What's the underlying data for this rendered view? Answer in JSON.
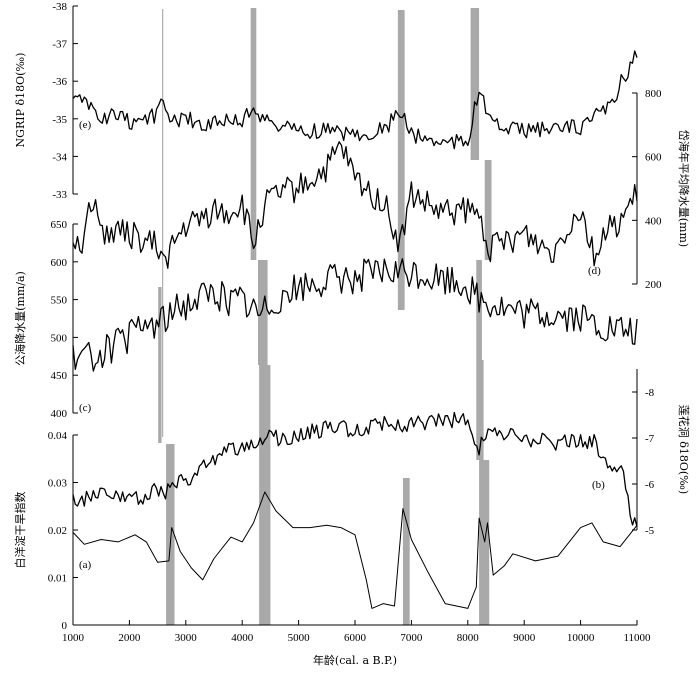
{
  "chart_data": {
    "type": "line",
    "x_axis": {
      "label": "年龄(cal. a B.P.)",
      "range": [
        1000,
        11000
      ],
      "ticks": [
        1000,
        2000,
        3000,
        4000,
        5000,
        6000,
        7000,
        8000,
        9000,
        10000,
        11000
      ],
      "tick_labels": [
        "1000",
        "2000",
        "3000",
        "4000",
        "5000",
        "6000",
        "7000",
        "8000",
        "9000",
        "10000",
        "11000"
      ]
    },
    "panels": [
      {
        "id": "e",
        "tag": "(e)",
        "side": "left",
        "label": "NGRIP δ18O(‰)",
        "range": [
          -38,
          -33
        ],
        "ticks": [
          -38,
          -37,
          -36,
          -35,
          -34,
          -33
        ],
        "tick_labels": [
          "-38",
          "-37",
          "-36",
          "-35",
          "-34",
          "-33"
        ],
        "values": [
          [
            1000,
            -35.5
          ],
          [
            1250,
            -35.4
          ],
          [
            1500,
            -35.0
          ],
          [
            1750,
            -35.1
          ],
          [
            2000,
            -34.9
          ],
          [
            2250,
            -35.0
          ],
          [
            2500,
            -35.1
          ],
          [
            2600,
            -35.5
          ],
          [
            2750,
            -35.0
          ],
          [
            3000,
            -35.0
          ],
          [
            3250,
            -34.9
          ],
          [
            3500,
            -34.9
          ],
          [
            3750,
            -35.0
          ],
          [
            4000,
            -34.9
          ],
          [
            4200,
            -35.4
          ],
          [
            4400,
            -34.9
          ],
          [
            4750,
            -34.8
          ],
          [
            5000,
            -34.7
          ],
          [
            5500,
            -34.7
          ],
          [
            6000,
            -34.6
          ],
          [
            6500,
            -34.7
          ],
          [
            6800,
            -35.2
          ],
          [
            7000,
            -34.6
          ],
          [
            7500,
            -34.4
          ],
          [
            8000,
            -34.4
          ],
          [
            8200,
            -35.8
          ],
          [
            8400,
            -34.9
          ],
          [
            8750,
            -34.7
          ],
          [
            9000,
            -34.7
          ],
          [
            9500,
            -34.7
          ],
          [
            10000,
            -34.8
          ],
          [
            10500,
            -35.3
          ],
          [
            11000,
            -36.8
          ]
        ],
        "noise": 0.22
      },
      {
        "id": "d",
        "tag": "(d)",
        "side": "right",
        "label": "岱海年平均降水量(mm)",
        "range": [
          200,
          800
        ],
        "ticks": [
          200,
          400,
          600,
          800
        ],
        "tick_labels": [
          "200",
          "400",
          "600",
          "800"
        ],
        "values": [
          [
            1000,
            350
          ],
          [
            1200,
            330
          ],
          [
            1300,
            480
          ],
          [
            1500,
            370
          ],
          [
            1750,
            360
          ],
          [
            2000,
            360
          ],
          [
            2300,
            330
          ],
          [
            2500,
            320
          ],
          [
            2600,
            270
          ],
          [
            2800,
            330
          ],
          [
            3000,
            380
          ],
          [
            3250,
            400
          ],
          [
            3500,
            430
          ],
          [
            3750,
            420
          ],
          [
            4000,
            450
          ],
          [
            4200,
            320
          ],
          [
            4400,
            450
          ],
          [
            4750,
            490
          ],
          [
            5000,
            500
          ],
          [
            5500,
            560
          ],
          [
            5750,
            630
          ],
          [
            6000,
            530
          ],
          [
            6300,
            480
          ],
          [
            6500,
            460
          ],
          [
            6800,
            320
          ],
          [
            7000,
            480
          ],
          [
            7500,
            420
          ],
          [
            8000,
            430
          ],
          [
            8200,
            410
          ],
          [
            8400,
            310
          ],
          [
            8750,
            340
          ],
          [
            9000,
            360
          ],
          [
            9500,
            300
          ],
          [
            9750,
            380
          ],
          [
            10000,
            440
          ],
          [
            10250,
            290
          ],
          [
            10500,
            370
          ],
          [
            10750,
            410
          ],
          [
            11000,
            480
          ]
        ],
        "noise": 45
      },
      {
        "id": "c",
        "tag": "(c)",
        "side": "left",
        "label": "公海降水量(mm/a)",
        "range": [
          400,
          650
        ],
        "ticks": [
          400,
          450,
          500,
          550,
          600,
          650
        ],
        "tick_labels": [
          "400",
          "450",
          "500",
          "550",
          "600",
          "650"
        ],
        "values": [
          [
            1000,
            470
          ],
          [
            1250,
            475
          ],
          [
            1500,
            480
          ],
          [
            1750,
            490
          ],
          [
            2000,
            500
          ],
          [
            2250,
            515
          ],
          [
            2500,
            520
          ],
          [
            2750,
            530
          ],
          [
            3000,
            545
          ],
          [
            3250,
            555
          ],
          [
            3500,
            560
          ],
          [
            3750,
            550
          ],
          [
            4000,
            550
          ],
          [
            4300,
            530
          ],
          [
            4500,
            545
          ],
          [
            4750,
            560
          ],
          [
            5000,
            565
          ],
          [
            5500,
            575
          ],
          [
            6000,
            580
          ],
          [
            6500,
            585
          ],
          [
            7000,
            585
          ],
          [
            7500,
            578
          ],
          [
            8000,
            570
          ],
          [
            8200,
            550
          ],
          [
            8400,
            545
          ],
          [
            8750,
            535
          ],
          [
            9000,
            530
          ],
          [
            9500,
            530
          ],
          [
            10000,
            525
          ],
          [
            10500,
            510
          ],
          [
            11000,
            505
          ]
        ],
        "noise": 22
      },
      {
        "id": "b",
        "tag": "(b)",
        "side": "right",
        "label": "莲花洞 δ18O(‰)",
        "range": [
          -5,
          -8.5
        ],
        "ticks": [
          -5,
          -6,
          -7,
          -8
        ],
        "tick_labels": [
          "-5",
          "-6",
          "-7",
          "-8"
        ],
        "values": [
          [
            1000,
            -5.6
          ],
          [
            1250,
            -5.7
          ],
          [
            1500,
            -5.8
          ],
          [
            1750,
            -5.7
          ],
          [
            2000,
            -5.8
          ],
          [
            2250,
            -5.7
          ],
          [
            2500,
            -5.9
          ],
          [
            2600,
            -5.7
          ],
          [
            2750,
            -6.0
          ],
          [
            3000,
            -6.1
          ],
          [
            3250,
            -6.3
          ],
          [
            3500,
            -6.5
          ],
          [
            3750,
            -6.7
          ],
          [
            4000,
            -6.8
          ],
          [
            4250,
            -6.9
          ],
          [
            4500,
            -7.0
          ],
          [
            4750,
            -7.0
          ],
          [
            5000,
            -7.1
          ],
          [
            5500,
            -7.2
          ],
          [
            6000,
            -7.2
          ],
          [
            6500,
            -7.3
          ],
          [
            7000,
            -7.3
          ],
          [
            7500,
            -7.4
          ],
          [
            8000,
            -7.4
          ],
          [
            8200,
            -6.8
          ],
          [
            8400,
            -7.3
          ],
          [
            8600,
            -7.0
          ],
          [
            8800,
            -7.1
          ],
          [
            9000,
            -7.0
          ],
          [
            9500,
            -6.9
          ],
          [
            10000,
            -6.9
          ],
          [
            10250,
            -6.9
          ],
          [
            10500,
            -6.5
          ],
          [
            10750,
            -6.3
          ],
          [
            10900,
            -5.3
          ],
          [
            11000,
            -5.1
          ]
        ],
        "noise": 0.18
      },
      {
        "id": "a",
        "tag": "(a)",
        "side": "left",
        "label": "白洋淀干旱指数",
        "range": [
          0,
          0.04
        ],
        "ticks": [
          0,
          0.01,
          0.02,
          0.03,
          0.04
        ],
        "tick_labels": [
          "0",
          "0.01",
          "0.02",
          "0.03",
          "0.04"
        ],
        "values": [
          [
            1000,
            0.0195
          ],
          [
            1200,
            0.017
          ],
          [
            1500,
            0.018
          ],
          [
            1800,
            0.0175
          ],
          [
            2100,
            0.019
          ],
          [
            2300,
            0.0175
          ],
          [
            2500,
            0.0132
          ],
          [
            2700,
            0.0135
          ],
          [
            2750,
            0.0205
          ],
          [
            2900,
            0.0155
          ],
          [
            3100,
            0.012
          ],
          [
            3300,
            0.0095
          ],
          [
            3500,
            0.014
          ],
          [
            3800,
            0.0185
          ],
          [
            4000,
            0.0175
          ],
          [
            4200,
            0.0215
          ],
          [
            4400,
            0.028
          ],
          [
            4600,
            0.024
          ],
          [
            4900,
            0.0205
          ],
          [
            5200,
            0.0205
          ],
          [
            5500,
            0.021
          ],
          [
            5750,
            0.0205
          ],
          [
            6000,
            0.019
          ],
          [
            6200,
            0.0095
          ],
          [
            6300,
            0.0035
          ],
          [
            6500,
            0.0045
          ],
          [
            6700,
            0.004
          ],
          [
            6850,
            0.0245
          ],
          [
            7000,
            0.018
          ],
          [
            7300,
            0.011
          ],
          [
            7600,
            0.0045
          ],
          [
            8000,
            0.0035
          ],
          [
            8150,
            0.008
          ],
          [
            8200,
            0.0225
          ],
          [
            8300,
            0.0175
          ],
          [
            8350,
            0.0215
          ],
          [
            8450,
            0.0105
          ],
          [
            8650,
            0.0125
          ],
          [
            8800,
            0.015
          ],
          [
            9200,
            0.0135
          ],
          [
            9600,
            0.0145
          ],
          [
            10000,
            0.0205
          ],
          [
            10200,
            0.0215
          ],
          [
            10400,
            0.0175
          ],
          [
            10700,
            0.0165
          ],
          [
            11000,
            0.021
          ]
        ],
        "noise": 0
      }
    ],
    "event_bands_cal_a_BP": [
      [
        2500,
        2650
      ],
      [
        2550,
        2700
      ],
      [
        2600,
        2800
      ],
      [
        4150,
        4250
      ],
      [
        4280,
        4420
      ],
      [
        4300,
        4500
      ],
      [
        6750,
        6900
      ],
      [
        6800,
        6970
      ],
      [
        8050,
        8200
      ],
      [
        8150,
        8300
      ],
      [
        8200,
        8380
      ]
    ]
  }
}
